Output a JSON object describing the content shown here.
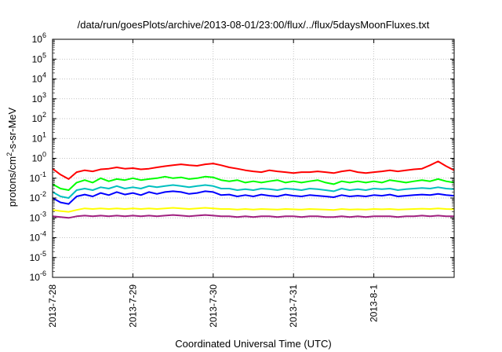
{
  "chart_data": {
    "type": "line",
    "title": "/data/run/goesPlots/archive/2013-08-01/23:00/flux/../flux/5daysMoonFluxes.txt",
    "xlabel": "Coordinated Universal Time (UTC)",
    "ylabel": "protons/cm²-s-sr-MeV",
    "ylabel_parts": {
      "before": "protons/cm",
      "sup": "2",
      "after": "-s-sr-MeV"
    },
    "yscale": "log",
    "ylim": [
      1e-06,
      1000000.0
    ],
    "xlim": [
      0,
      5
    ],
    "grid": true,
    "x_ticks": [
      {
        "x": 0,
        "label": "2013-7-28"
      },
      {
        "x": 1,
        "label": "2013-7-29"
      },
      {
        "x": 2,
        "label": "2013-7-30"
      },
      {
        "x": 3,
        "label": "2013-7-31"
      },
      {
        "x": 4,
        "label": "2013-8-1"
      }
    ],
    "y_ticks": [
      {
        "exp": -6,
        "label": "10",
        "sup": "-6"
      },
      {
        "exp": -5,
        "label": "10",
        "sup": "-5"
      },
      {
        "exp": -4,
        "label": "10",
        "sup": "-4"
      },
      {
        "exp": -3,
        "label": "10",
        "sup": "-3"
      },
      {
        "exp": -2,
        "label": "10",
        "sup": "-2"
      },
      {
        "exp": -1,
        "label": "10",
        "sup": "-1"
      },
      {
        "exp": 0,
        "label": "10",
        "sup": "0"
      },
      {
        "exp": 1,
        "label": "10",
        "sup": "1"
      },
      {
        "exp": 2,
        "label": "10",
        "sup": "2"
      },
      {
        "exp": 3,
        "label": "10",
        "sup": "3"
      },
      {
        "exp": 4,
        "label": "10",
        "sup": "4"
      },
      {
        "exp": 5,
        "label": "10",
        "sup": "5"
      },
      {
        "exp": 6,
        "label": "10",
        "sup": "6"
      }
    ],
    "series": [
      {
        "color": "#ff0000",
        "x": [
          0,
          0.1,
          0.2,
          0.3,
          0.4,
          0.5,
          0.6,
          0.7,
          0.8,
          0.9,
          1,
          1.1,
          1.2,
          1.3,
          1.4,
          1.5,
          1.6,
          1.7,
          1.8,
          1.9,
          2,
          2.1,
          2.2,
          2.3,
          2.4,
          2.5,
          2.6,
          2.7,
          2.8,
          2.9,
          3,
          3.1,
          3.2,
          3.3,
          3.4,
          3.5,
          3.6,
          3.7,
          3.8,
          3.9,
          4,
          4.1,
          4.2,
          4.3,
          4.4,
          4.5,
          4.6,
          4.7,
          4.8,
          4.9,
          5
        ],
        "y": [
          0.3,
          0.15,
          0.09,
          0.2,
          0.25,
          0.22,
          0.28,
          0.3,
          0.35,
          0.3,
          0.32,
          0.28,
          0.3,
          0.35,
          0.4,
          0.45,
          0.5,
          0.45,
          0.42,
          0.5,
          0.55,
          0.45,
          0.35,
          0.3,
          0.25,
          0.22,
          0.2,
          0.25,
          0.22,
          0.2,
          0.18,
          0.2,
          0.2,
          0.22,
          0.2,
          0.18,
          0.22,
          0.25,
          0.2,
          0.18,
          0.2,
          0.22,
          0.25,
          0.22,
          0.25,
          0.28,
          0.3,
          0.45,
          0.7,
          0.4,
          0.25
        ]
      },
      {
        "color": "#00ff00",
        "x": [
          0,
          0.1,
          0.2,
          0.3,
          0.4,
          0.5,
          0.6,
          0.7,
          0.8,
          0.9,
          1,
          1.1,
          1.2,
          1.3,
          1.4,
          1.5,
          1.6,
          1.7,
          1.8,
          1.9,
          2,
          2.1,
          2.2,
          2.3,
          2.4,
          2.5,
          2.6,
          2.7,
          2.8,
          2.9,
          3,
          3.1,
          3.2,
          3.3,
          3.4,
          3.5,
          3.6,
          3.7,
          3.8,
          3.9,
          4,
          4.1,
          4.2,
          4.3,
          4.4,
          4.5,
          4.6,
          4.7,
          4.8,
          4.9,
          5
        ],
        "y": [
          0.05,
          0.03,
          0.025,
          0.06,
          0.08,
          0.06,
          0.1,
          0.07,
          0.09,
          0.08,
          0.1,
          0.08,
          0.09,
          0.1,
          0.12,
          0.1,
          0.11,
          0.09,
          0.1,
          0.12,
          0.11,
          0.08,
          0.07,
          0.08,
          0.06,
          0.07,
          0.06,
          0.07,
          0.08,
          0.06,
          0.07,
          0.06,
          0.07,
          0.08,
          0.06,
          0.05,
          0.07,
          0.06,
          0.07,
          0.06,
          0.07,
          0.06,
          0.08,
          0.07,
          0.06,
          0.07,
          0.08,
          0.07,
          0.09,
          0.07,
          0.06
        ]
      },
      {
        "color": "#00c0c0",
        "x": [
          0,
          0.1,
          0.2,
          0.3,
          0.4,
          0.5,
          0.6,
          0.7,
          0.8,
          0.9,
          1,
          1.1,
          1.2,
          1.3,
          1.4,
          1.5,
          1.6,
          1.7,
          1.8,
          1.9,
          2,
          2.1,
          2.2,
          2.3,
          2.4,
          2.5,
          2.6,
          2.7,
          2.8,
          2.9,
          3,
          3.1,
          3.2,
          3.3,
          3.4,
          3.5,
          3.6,
          3.7,
          3.8,
          3.9,
          4,
          4.1,
          4.2,
          4.3,
          4.4,
          4.5,
          4.6,
          4.7,
          4.8,
          4.9,
          5
        ],
        "y": [
          0.02,
          0.012,
          0.01,
          0.025,
          0.03,
          0.025,
          0.035,
          0.03,
          0.04,
          0.03,
          0.035,
          0.03,
          0.04,
          0.035,
          0.04,
          0.045,
          0.04,
          0.035,
          0.04,
          0.045,
          0.04,
          0.03,
          0.03,
          0.025,
          0.028,
          0.025,
          0.03,
          0.028,
          0.025,
          0.03,
          0.028,
          0.025,
          0.03,
          0.028,
          0.025,
          0.022,
          0.03,
          0.025,
          0.028,
          0.025,
          0.03,
          0.028,
          0.03,
          0.025,
          0.028,
          0.03,
          0.032,
          0.03,
          0.035,
          0.03,
          0.028
        ]
      },
      {
        "color": "#0000ff",
        "x": [
          0,
          0.1,
          0.2,
          0.3,
          0.4,
          0.5,
          0.6,
          0.7,
          0.8,
          0.9,
          1,
          1.1,
          1.2,
          1.3,
          1.4,
          1.5,
          1.6,
          1.7,
          1.8,
          1.9,
          2,
          2.1,
          2.2,
          2.3,
          2.4,
          2.5,
          2.6,
          2.7,
          2.8,
          2.9,
          3,
          3.1,
          3.2,
          3.3,
          3.4,
          3.5,
          3.6,
          3.7,
          3.8,
          3.9,
          4,
          4.1,
          4.2,
          4.3,
          4.4,
          4.5,
          4.6,
          4.7,
          4.8,
          4.9,
          5
        ],
        "y": [
          0.01,
          0.006,
          0.005,
          0.012,
          0.015,
          0.012,
          0.018,
          0.014,
          0.02,
          0.015,
          0.018,
          0.014,
          0.02,
          0.016,
          0.02,
          0.022,
          0.02,
          0.016,
          0.018,
          0.022,
          0.02,
          0.014,
          0.015,
          0.012,
          0.014,
          0.012,
          0.015,
          0.013,
          0.012,
          0.015,
          0.013,
          0.012,
          0.014,
          0.013,
          0.012,
          0.011,
          0.014,
          0.012,
          0.013,
          0.012,
          0.014,
          0.013,
          0.015,
          0.012,
          0.013,
          0.014,
          0.015,
          0.014,
          0.016,
          0.014,
          0.013
        ]
      },
      {
        "color": "#ffff00",
        "x": [
          0,
          0.1,
          0.2,
          0.3,
          0.4,
          0.5,
          0.6,
          0.7,
          0.8,
          0.9,
          1,
          1.1,
          1.2,
          1.3,
          1.4,
          1.5,
          1.6,
          1.7,
          1.8,
          1.9,
          2,
          2.1,
          2.2,
          2.3,
          2.4,
          2.5,
          2.6,
          2.7,
          2.8,
          2.9,
          3,
          3.1,
          3.2,
          3.3,
          3.4,
          3.5,
          3.6,
          3.7,
          3.8,
          3.9,
          4,
          4.1,
          4.2,
          4.3,
          4.4,
          4.5,
          4.6,
          4.7,
          4.8,
          4.9,
          5
        ],
        "y": [
          0.0025,
          0.0022,
          0.002,
          0.0025,
          0.003,
          0.0028,
          0.003,
          0.0028,
          0.003,
          0.0028,
          0.003,
          0.0028,
          0.003,
          0.0028,
          0.003,
          0.0032,
          0.003,
          0.0028,
          0.003,
          0.0032,
          0.003,
          0.0028,
          0.0028,
          0.0026,
          0.0028,
          0.0026,
          0.0028,
          0.0027,
          0.0026,
          0.0028,
          0.0027,
          0.0026,
          0.0028,
          0.0027,
          0.0026,
          0.0025,
          0.0028,
          0.0026,
          0.0027,
          0.0026,
          0.0028,
          0.0027,
          0.0028,
          0.0026,
          0.0027,
          0.0028,
          0.0029,
          0.0028,
          0.003,
          0.0028,
          0.0027
        ]
      },
      {
        "color": "#a02080",
        "x": [
          0,
          0.1,
          0.2,
          0.3,
          0.4,
          0.5,
          0.6,
          0.7,
          0.8,
          0.9,
          1,
          1.1,
          1.2,
          1.3,
          1.4,
          1.5,
          1.6,
          1.7,
          1.8,
          1.9,
          2,
          2.1,
          2.2,
          2.3,
          2.4,
          2.5,
          2.6,
          2.7,
          2.8,
          2.9,
          3,
          3.1,
          3.2,
          3.3,
          3.4,
          3.5,
          3.6,
          3.7,
          3.8,
          3.9,
          4,
          4.1,
          4.2,
          4.3,
          4.4,
          4.5,
          4.6,
          4.7,
          4.8,
          4.9,
          5
        ],
        "y": [
          0.0012,
          0.0011,
          0.001,
          0.0012,
          0.0013,
          0.0012,
          0.0013,
          0.0012,
          0.0013,
          0.0012,
          0.0013,
          0.0012,
          0.0013,
          0.0012,
          0.0013,
          0.0014,
          0.0013,
          0.0012,
          0.0013,
          0.0014,
          0.0013,
          0.0012,
          0.0012,
          0.0011,
          0.0012,
          0.0011,
          0.0012,
          0.0012,
          0.0011,
          0.0012,
          0.0012,
          0.0011,
          0.0012,
          0.0012,
          0.0011,
          0.0011,
          0.0012,
          0.0011,
          0.0012,
          0.0011,
          0.0012,
          0.0012,
          0.0012,
          0.0011,
          0.0012,
          0.0012,
          0.0013,
          0.0012,
          0.0013,
          0.0012,
          0.0012
        ]
      }
    ]
  }
}
